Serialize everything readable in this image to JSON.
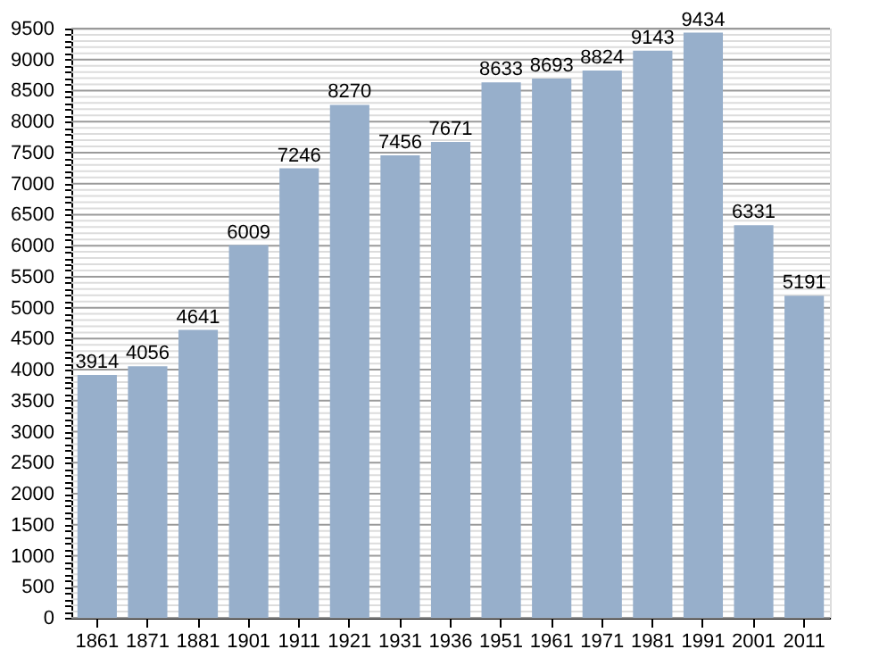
{
  "chart_data": {
    "type": "bar",
    "categories": [
      "1861",
      "1871",
      "1881",
      "1901",
      "1911",
      "1921",
      "1931",
      "1936",
      "1951",
      "1961",
      "1971",
      "1981",
      "1991",
      "2001",
      "2011"
    ],
    "values": [
      3914,
      4056,
      4641,
      6009,
      7246,
      8270,
      7456,
      7671,
      8633,
      8693,
      8824,
      9143,
      9434,
      6331,
      5191
    ],
    "color": "#97afcb",
    "data_labels": true,
    "ylim": [
      0,
      9500
    ],
    "yticks": [
      0,
      {
        "value": 100,
        "label": null
      },
      {
        "value": 200,
        "label": null
      },
      {
        "value": 300,
        "label": null
      },
      {
        "value": 400,
        "label": null
      },
      500,
      {
        "value": 600,
        "label": null
      },
      {
        "value": 700,
        "label": null
      },
      {
        "value": 800,
        "label": null
      },
      {
        "value": 900,
        "label": null
      },
      1000,
      {
        "value": 1100,
        "label": null
      },
      {
        "value": 1200,
        "label": null
      },
      {
        "value": 1300,
        "label": null
      },
      {
        "value": 1400,
        "label": null
      },
      1500,
      {
        "value": 1600,
        "label": null
      },
      {
        "value": 1700,
        "label": null
      },
      {
        "value": 1800,
        "label": null
      },
      {
        "value": 1900,
        "label": null
      },
      2000,
      {
        "value": 2100,
        "label": null
      },
      {
        "value": 2200,
        "label": null
      },
      {
        "value": 2300,
        "label": null
      },
      {
        "value": 2400,
        "label": null
      },
      2500,
      {
        "value": 2600,
        "label": null
      },
      {
        "value": 2700,
        "label": null
      },
      {
        "value": 2800,
        "label": null
      },
      {
        "value": 2900,
        "label": null
      },
      3000,
      {
        "value": 3100,
        "label": null
      },
      {
        "value": 3200,
        "label": null
      },
      {
        "value": 3300,
        "label": null
      },
      {
        "value": 3400,
        "label": null
      },
      3500,
      {
        "value": 3600,
        "label": null
      },
      {
        "value": 3700,
        "label": null
      },
      {
        "value": 3800,
        "label": null
      },
      {
        "value": 3900,
        "label": null
      },
      4000,
      {
        "value": 4100,
        "label": null
      },
      {
        "value": 4200,
        "label": null
      },
      {
        "value": 4300,
        "label": null
      },
      {
        "value": 4400,
        "label": null
      },
      4500,
      {
        "value": 4600,
        "label": null
      },
      {
        "value": 4700,
        "label": null
      },
      {
        "value": 4800,
        "label": null
      },
      {
        "value": 4900,
        "label": null
      },
      5000,
      {
        "value": 5100,
        "label": null
      },
      {
        "value": 5200,
        "label": null
      },
      {
        "value": 5300,
        "label": null
      },
      {
        "value": 5400,
        "label": null
      },
      5500,
      {
        "value": 5600,
        "label": null
      },
      {
        "value": 5700,
        "label": null
      },
      {
        "value": 5800,
        "label": null
      },
      {
        "value": 5900,
        "label": null
      },
      6000,
      {
        "value": 6100,
        "label": null
      },
      {
        "value": 6200,
        "label": null
      },
      {
        "value": 6300,
        "label": null
      },
      {
        "value": 6400,
        "label": null
      },
      6500,
      {
        "value": 6600,
        "label": null
      },
      {
        "value": 6700,
        "label": null
      },
      {
        "value": 6800,
        "label": null
      },
      {
        "value": 6900,
        "label": null
      },
      7000,
      {
        "value": 7100,
        "label": null
      },
      {
        "value": 7200,
        "label": null
      },
      {
        "value": 7300,
        "label": null
      },
      {
        "value": 7400,
        "label": null
      },
      7500,
      {
        "value": 7600,
        "label": null
      },
      {
        "value": 7700,
        "label": null
      },
      {
        "value": 7800,
        "label": null
      },
      {
        "value": 7900,
        "label": null
      },
      8000,
      {
        "value": 8100,
        "label": null
      },
      {
        "value": 8200,
        "label": null
      },
      {
        "value": 8300,
        "label": null
      },
      {
        "value": 8400,
        "label": null
      },
      8500,
      {
        "value": 8600,
        "label": null
      },
      {
        "value": 8700,
        "label": null
      },
      {
        "value": 8800,
        "label": null
      },
      {
        "value": 8900,
        "label": null
      },
      9000,
      {
        "value": 9100,
        "label": null
      },
      {
        "value": 9200,
        "label": null
      },
      {
        "value": 9300,
        "label": null
      },
      {
        "value": 9400,
        "label": null
      },
      9500
    ],
    "grid": "y"
  }
}
